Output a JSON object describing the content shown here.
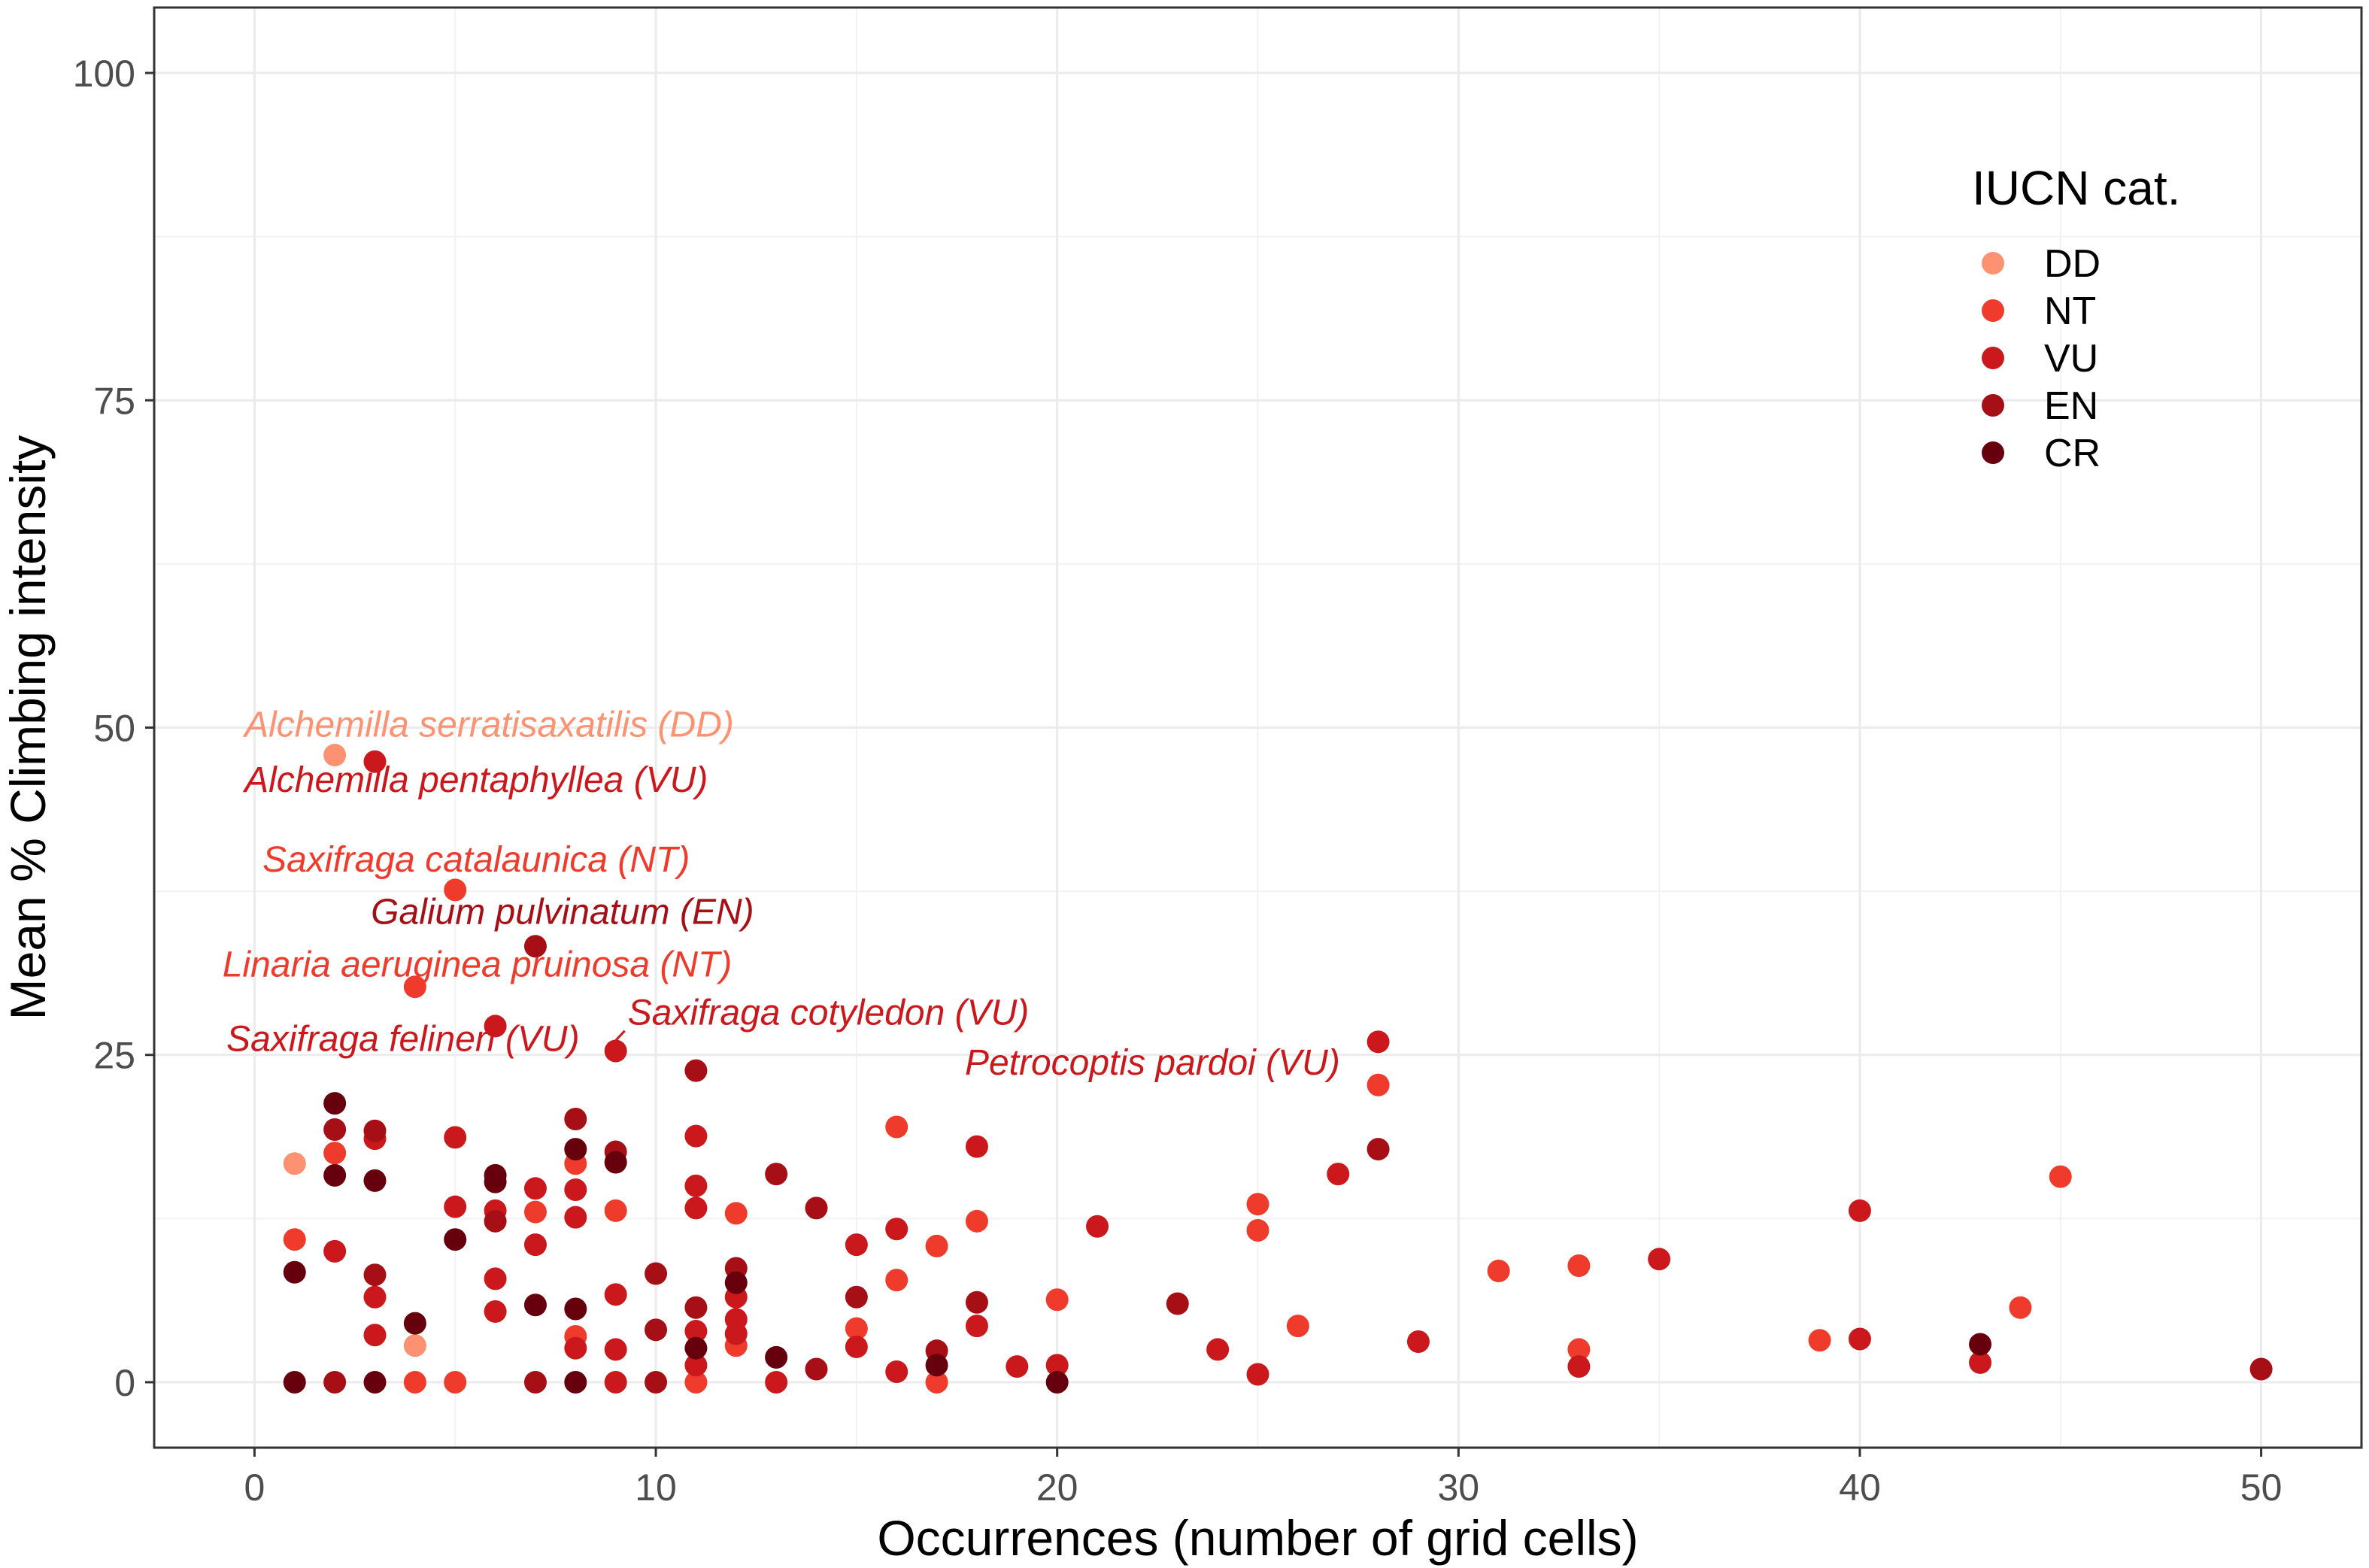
{
  "chart_data": {
    "type": "scatter",
    "title": "",
    "xlabel": "Occurrences (number of grid cells)",
    "ylabel": "Mean % Climbing intensity",
    "xlim": [
      -2.5,
      52.5
    ],
    "ylim": [
      -5,
      105
    ],
    "xticks": [
      0,
      10,
      20,
      30,
      40,
      50
    ],
    "yticks": [
      0,
      25,
      50,
      75,
      100
    ],
    "grid": true,
    "legend": {
      "title": "IUCN cat.",
      "position": "top-right",
      "entries": [
        {
          "label": "DD",
          "color": "#fc9272"
        },
        {
          "label": "NT",
          "color": "#ef3b2c"
        },
        {
          "label": "VU",
          "color": "#cb181d"
        },
        {
          "label": "EN",
          "color": "#a50f15"
        },
        {
          "label": "CR",
          "color": "#67000d"
        }
      ]
    },
    "colors": {
      "DD": "#fc9272",
      "NT": "#ef3b2c",
      "VU": "#cb181d",
      "EN": "#a50f15",
      "CR": "#67000d"
    },
    "points": [
      {
        "x": 1,
        "y": 16.7,
        "cat": "DD"
      },
      {
        "x": 2,
        "y": 47.9,
        "cat": "DD"
      },
      {
        "x": 4,
        "y": 2.8,
        "cat": "DD"
      },
      {
        "x": 1,
        "y": 10.9,
        "cat": "NT"
      },
      {
        "x": 2,
        "y": 17.5,
        "cat": "NT"
      },
      {
        "x": 4,
        "y": 30.2,
        "cat": "NT"
      },
      {
        "x": 4,
        "y": 0,
        "cat": "NT"
      },
      {
        "x": 5,
        "y": 37.6,
        "cat": "NT"
      },
      {
        "x": 5,
        "y": 0,
        "cat": "NT"
      },
      {
        "x": 7,
        "y": 13,
        "cat": "NT"
      },
      {
        "x": 8,
        "y": 16.7,
        "cat": "NT"
      },
      {
        "x": 8,
        "y": 3.5,
        "cat": "NT"
      },
      {
        "x": 9,
        "y": 13.1,
        "cat": "NT"
      },
      {
        "x": 11,
        "y": 0,
        "cat": "NT"
      },
      {
        "x": 12,
        "y": 12.9,
        "cat": "NT"
      },
      {
        "x": 12,
        "y": 2.8,
        "cat": "NT"
      },
      {
        "x": 15,
        "y": 4.1,
        "cat": "NT"
      },
      {
        "x": 16,
        "y": 19.5,
        "cat": "NT"
      },
      {
        "x": 16,
        "y": 7.8,
        "cat": "NT"
      },
      {
        "x": 17,
        "y": 10.4,
        "cat": "NT"
      },
      {
        "x": 17,
        "y": 0,
        "cat": "NT"
      },
      {
        "x": 18,
        "y": 12.3,
        "cat": "NT"
      },
      {
        "x": 20,
        "y": 6.3,
        "cat": "NT"
      },
      {
        "x": 25,
        "y": 13.6,
        "cat": "NT"
      },
      {
        "x": 25,
        "y": 11.6,
        "cat": "NT"
      },
      {
        "x": 26,
        "y": 4.3,
        "cat": "NT"
      },
      {
        "x": 28,
        "y": 22.7,
        "cat": "NT"
      },
      {
        "x": 31,
        "y": 8.5,
        "cat": "NT"
      },
      {
        "x": 33,
        "y": 8.9,
        "cat": "NT"
      },
      {
        "x": 33,
        "y": 2.5,
        "cat": "NT"
      },
      {
        "x": 39,
        "y": 3.2,
        "cat": "NT"
      },
      {
        "x": 44,
        "y": 5.7,
        "cat": "NT"
      },
      {
        "x": 45,
        "y": 15.7,
        "cat": "NT"
      },
      {
        "x": 2,
        "y": 10,
        "cat": "VU"
      },
      {
        "x": 3,
        "y": 47.4,
        "cat": "VU"
      },
      {
        "x": 3,
        "y": 18.6,
        "cat": "VU"
      },
      {
        "x": 3,
        "y": 6.5,
        "cat": "VU"
      },
      {
        "x": 3,
        "y": 3.6,
        "cat": "VU"
      },
      {
        "x": 5,
        "y": 18.7,
        "cat": "VU"
      },
      {
        "x": 5,
        "y": 13.4,
        "cat": "VU"
      },
      {
        "x": 6,
        "y": 27.2,
        "cat": "VU"
      },
      {
        "x": 6,
        "y": 13.1,
        "cat": "VU"
      },
      {
        "x": 6,
        "y": 7.9,
        "cat": "VU"
      },
      {
        "x": 6,
        "y": 5.4,
        "cat": "VU"
      },
      {
        "x": 7,
        "y": 14.8,
        "cat": "VU"
      },
      {
        "x": 7,
        "y": 10.5,
        "cat": "VU"
      },
      {
        "x": 8,
        "y": 14.7,
        "cat": "VU"
      },
      {
        "x": 8,
        "y": 12.6,
        "cat": "VU"
      },
      {
        "x": 8,
        "y": 2.6,
        "cat": "VU"
      },
      {
        "x": 9,
        "y": 25.3,
        "cat": "VU"
      },
      {
        "x": 9,
        "y": 6.7,
        "cat": "VU"
      },
      {
        "x": 9,
        "y": 2.5,
        "cat": "VU"
      },
      {
        "x": 9,
        "y": 0,
        "cat": "VU"
      },
      {
        "x": 11,
        "y": 18.8,
        "cat": "VU"
      },
      {
        "x": 11,
        "y": 15,
        "cat": "VU"
      },
      {
        "x": 11,
        "y": 13.3,
        "cat": "VU"
      },
      {
        "x": 11,
        "y": 3.9,
        "cat": "VU"
      },
      {
        "x": 11,
        "y": 1.3,
        "cat": "VU"
      },
      {
        "x": 12,
        "y": 6.5,
        "cat": "VU"
      },
      {
        "x": 12,
        "y": 4.8,
        "cat": "VU"
      },
      {
        "x": 12,
        "y": 3.7,
        "cat": "VU"
      },
      {
        "x": 13,
        "y": 0,
        "cat": "VU"
      },
      {
        "x": 15,
        "y": 10.5,
        "cat": "VU"
      },
      {
        "x": 15,
        "y": 2.7,
        "cat": "VU"
      },
      {
        "x": 16,
        "y": 11.7,
        "cat": "VU"
      },
      {
        "x": 16,
        "y": 0.8,
        "cat": "VU"
      },
      {
        "x": 18,
        "y": 18,
        "cat": "VU"
      },
      {
        "x": 18,
        "y": 4.3,
        "cat": "VU"
      },
      {
        "x": 19,
        "y": 1.2,
        "cat": "VU"
      },
      {
        "x": 20,
        "y": 1.3,
        "cat": "VU"
      },
      {
        "x": 21,
        "y": 11.9,
        "cat": "VU"
      },
      {
        "x": 24,
        "y": 2.5,
        "cat": "VU"
      },
      {
        "x": 25,
        "y": 0.6,
        "cat": "VU"
      },
      {
        "x": 27,
        "y": 15.9,
        "cat": "VU"
      },
      {
        "x": 28,
        "y": 26,
        "cat": "VU"
      },
      {
        "x": 29,
        "y": 3.1,
        "cat": "VU"
      },
      {
        "x": 33,
        "y": 1.2,
        "cat": "VU"
      },
      {
        "x": 35,
        "y": 9.4,
        "cat": "VU"
      },
      {
        "x": 40,
        "y": 13.1,
        "cat": "VU"
      },
      {
        "x": 40,
        "y": 3.3,
        "cat": "VU"
      },
      {
        "x": 43,
        "y": 1.5,
        "cat": "VU"
      },
      {
        "x": 2,
        "y": 19.3,
        "cat": "EN"
      },
      {
        "x": 2,
        "y": 0,
        "cat": "EN"
      },
      {
        "x": 3,
        "y": 19.2,
        "cat": "EN"
      },
      {
        "x": 3,
        "y": 8.2,
        "cat": "EN"
      },
      {
        "x": 6,
        "y": 12.3,
        "cat": "EN"
      },
      {
        "x": 7,
        "y": 33.3,
        "cat": "EN"
      },
      {
        "x": 7,
        "y": 0,
        "cat": "EN"
      },
      {
        "x": 8,
        "y": 20.1,
        "cat": "EN"
      },
      {
        "x": 9,
        "y": 17.6,
        "cat": "EN"
      },
      {
        "x": 10,
        "y": 8.3,
        "cat": "EN"
      },
      {
        "x": 10,
        "y": 4,
        "cat": "EN"
      },
      {
        "x": 10,
        "y": 0,
        "cat": "EN"
      },
      {
        "x": 11,
        "y": 23.8,
        "cat": "EN"
      },
      {
        "x": 11,
        "y": 5.7,
        "cat": "EN"
      },
      {
        "x": 12,
        "y": 8.7,
        "cat": "EN"
      },
      {
        "x": 13,
        "y": 15.9,
        "cat": "EN"
      },
      {
        "x": 14,
        "y": 13.3,
        "cat": "EN"
      },
      {
        "x": 14,
        "y": 1,
        "cat": "EN"
      },
      {
        "x": 15,
        "y": 6.5,
        "cat": "EN"
      },
      {
        "x": 17,
        "y": 2.4,
        "cat": "EN"
      },
      {
        "x": 18,
        "y": 6.1,
        "cat": "EN"
      },
      {
        "x": 23,
        "y": 6,
        "cat": "EN"
      },
      {
        "x": 28,
        "y": 17.8,
        "cat": "EN"
      },
      {
        "x": 50,
        "y": 1,
        "cat": "EN"
      },
      {
        "x": 1,
        "y": 8.4,
        "cat": "CR"
      },
      {
        "x": 1,
        "y": 0,
        "cat": "CR"
      },
      {
        "x": 2,
        "y": 21.3,
        "cat": "CR"
      },
      {
        "x": 2,
        "y": 15.8,
        "cat": "CR"
      },
      {
        "x": 3,
        "y": 15.4,
        "cat": "CR"
      },
      {
        "x": 3,
        "y": 0,
        "cat": "CR"
      },
      {
        "x": 4,
        "y": 4.5,
        "cat": "CR"
      },
      {
        "x": 5,
        "y": 10.9,
        "cat": "CR"
      },
      {
        "x": 6,
        "y": 15.8,
        "cat": "CR"
      },
      {
        "x": 6,
        "y": 15.3,
        "cat": "CR"
      },
      {
        "x": 7,
        "y": 5.9,
        "cat": "CR"
      },
      {
        "x": 8,
        "y": 17.8,
        "cat": "CR"
      },
      {
        "x": 8,
        "y": 5.6,
        "cat": "CR"
      },
      {
        "x": 8,
        "y": 0,
        "cat": "CR"
      },
      {
        "x": 9,
        "y": 16.8,
        "cat": "CR"
      },
      {
        "x": 11,
        "y": 2.6,
        "cat": "CR"
      },
      {
        "x": 12,
        "y": 7.6,
        "cat": "CR"
      },
      {
        "x": 13,
        "y": 1.9,
        "cat": "CR"
      },
      {
        "x": 17,
        "y": 1.3,
        "cat": "CR"
      },
      {
        "x": 20,
        "y": 0,
        "cat": "CR"
      },
      {
        "x": 43,
        "y": 2.9,
        "cat": "CR"
      }
    ],
    "annotations": [
      {
        "text": "Alchemilla serratisaxatilis (DD)",
        "cat": "DD",
        "x": 2,
        "y": 47.9,
        "anchor_x": -0.25,
        "anchor_y": 49.3,
        "align": "start"
      },
      {
        "text": "Alchemilla pentaphyllea (VU)",
        "cat": "VU",
        "x": 3,
        "y": 47.4,
        "anchor_x": -0.25,
        "anchor_y": 45.1,
        "align": "start"
      },
      {
        "text": "Saxifraga catalaunica (NT)",
        "cat": "NT",
        "x": 5,
        "y": 37.6,
        "anchor_x": 0.2,
        "anchor_y": 39.0,
        "align": "start"
      },
      {
        "text": "Galium pulvinatum (EN)",
        "cat": "EN",
        "x": 7,
        "y": 33.3,
        "anchor_x": 2.9,
        "anchor_y": 35.0,
        "align": "start"
      },
      {
        "text": "Linaria aeruginea pruinosa (NT)",
        "cat": "NT",
        "x": 4,
        "y": 30.2,
        "anchor_x": -0.8,
        "anchor_y": 31.0,
        "align": "start"
      },
      {
        "text": "Saxifraga cotyledon (VU)",
        "cat": "VU",
        "x": 9,
        "y": 25.3,
        "anchor_x": 9.3,
        "anchor_y": 27.3,
        "align": "start",
        "leader": true
      },
      {
        "text": "Saxifraga felineri (VU)",
        "cat": "VU",
        "x": 6,
        "y": 27.2,
        "anchor_x": -0.7,
        "anchor_y": 25.3,
        "align": "start"
      },
      {
        "text": "Petrocoptis pardoi (VU)",
        "cat": "VU",
        "x": 28,
        "y": 26,
        "anchor_x": 17.7,
        "anchor_y": 23.5,
        "align": "start"
      }
    ]
  }
}
